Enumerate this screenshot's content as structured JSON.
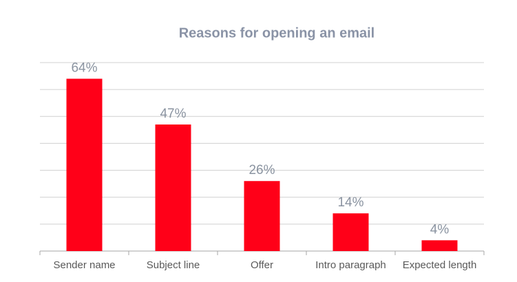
{
  "chart_data": {
    "type": "bar",
    "title": "Reasons for opening an email",
    "categories": [
      "Sender name",
      "Subject line",
      "Offer",
      "Intro paragraph",
      "Expected length"
    ],
    "values": [
      64,
      47,
      26,
      14,
      4
    ],
    "value_labels": [
      "64%",
      "47%",
      "26%",
      "14%",
      "4%"
    ],
    "color": "#ff0018",
    "ylim": [
      0,
      70
    ],
    "yticks": [
      0,
      10,
      20,
      30,
      40,
      50,
      60,
      70
    ],
    "grid": true
  }
}
